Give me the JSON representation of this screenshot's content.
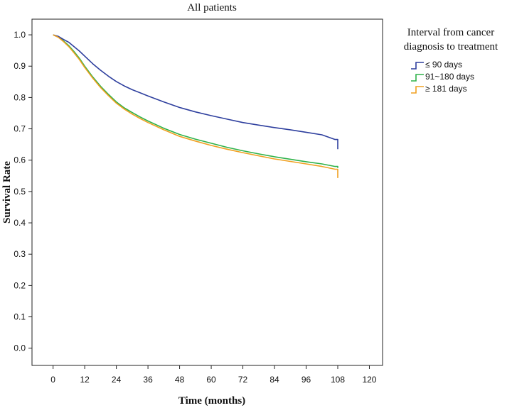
{
  "chart_data": {
    "type": "line",
    "title": "All patients",
    "xlabel": "Time (months)",
    "ylabel": "Survival Rate",
    "xlim": [
      -8,
      125
    ],
    "ylim": [
      -0.055,
      1.05
    ],
    "xticks": [
      0,
      12,
      24,
      36,
      48,
      60,
      72,
      84,
      96,
      108,
      120
    ],
    "xtick_labels": [
      "0",
      "12",
      "24",
      "36",
      "48",
      "60",
      "72",
      "84",
      "96",
      "108",
      "120"
    ],
    "yticks": [
      0.0,
      0.1,
      0.2,
      0.3,
      0.4,
      0.5,
      0.6,
      0.7,
      0.8,
      0.9,
      1.0
    ],
    "ytick_labels": [
      "0.0",
      "0.1",
      "0.2",
      "0.3",
      "0.4",
      "0.5",
      "0.6",
      "0.7",
      "0.8",
      "0.9",
      "1.0"
    ],
    "grid": false,
    "legend": {
      "title_lines": [
        "Interval from cancer",
        "diagnosis to treatment"
      ],
      "position": "right-top"
    },
    "series": [
      {
        "name": "≤ 90 days",
        "color": "#2e3f9e",
        "x": [
          0,
          2,
          4,
          6,
          8,
          10,
          12,
          15,
          18,
          21,
          24,
          27,
          30,
          33,
          36,
          42,
          48,
          54,
          60,
          66,
          72,
          78,
          84,
          90,
          96,
          102,
          107,
          108
        ],
        "y": [
          1.0,
          0.995,
          0.985,
          0.976,
          0.962,
          0.948,
          0.932,
          0.908,
          0.887,
          0.868,
          0.851,
          0.837,
          0.825,
          0.815,
          0.805,
          0.786,
          0.768,
          0.754,
          0.742,
          0.731,
          0.72,
          0.712,
          0.704,
          0.697,
          0.689,
          0.681,
          0.666,
          0.635
        ]
      },
      {
        "name": "91~180 days",
        "color": "#2fb24a",
        "x": [
          0,
          2,
          4,
          6,
          8,
          10,
          12,
          15,
          18,
          21,
          24,
          27,
          30,
          33,
          36,
          42,
          48,
          54,
          60,
          66,
          72,
          78,
          84,
          90,
          96,
          102,
          107,
          108
        ],
        "y": [
          1.0,
          0.993,
          0.98,
          0.965,
          0.946,
          0.925,
          0.9,
          0.866,
          0.836,
          0.81,
          0.786,
          0.767,
          0.752,
          0.738,
          0.725,
          0.702,
          0.682,
          0.667,
          0.654,
          0.641,
          0.63,
          0.62,
          0.611,
          0.603,
          0.595,
          0.588,
          0.58,
          0.575
        ]
      },
      {
        "name": "≥ 181 days",
        "color": "#f0a020",
        "x": [
          0,
          2,
          4,
          6,
          8,
          10,
          12,
          15,
          18,
          21,
          24,
          27,
          30,
          33,
          36,
          42,
          48,
          54,
          60,
          66,
          72,
          78,
          84,
          90,
          96,
          102,
          107,
          108
        ],
        "y": [
          1.0,
          0.992,
          0.978,
          0.962,
          0.942,
          0.921,
          0.896,
          0.862,
          0.832,
          0.806,
          0.782,
          0.763,
          0.747,
          0.733,
          0.72,
          0.697,
          0.676,
          0.661,
          0.647,
          0.635,
          0.624,
          0.614,
          0.604,
          0.596,
          0.588,
          0.58,
          0.571,
          0.543
        ]
      }
    ]
  }
}
